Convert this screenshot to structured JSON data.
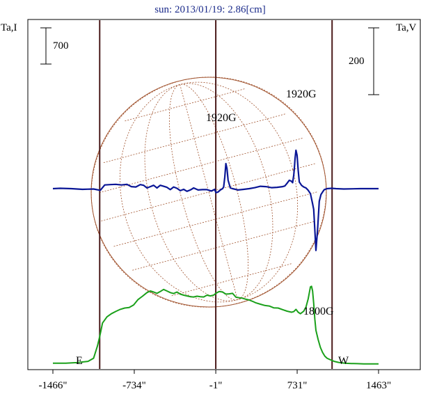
{
  "chart_data": {
    "type": "line",
    "title": "sun: 2013/01/19: 2.86[cm]",
    "left_axis_label": "Ta,I",
    "right_axis_label": "Ta,V",
    "x_ticks": [
      -1466,
      -734,
      -1,
      731,
      1463
    ],
    "x_tick_labels": [
      "-1466\"",
      "-734\"",
      "-1\"",
      "731\"",
      "1463\""
    ],
    "xlim": [
      -1466,
      1463
    ],
    "vertical_lines_x": [
      -1045,
      -1,
      1045
    ],
    "limb_labels": {
      "east": "E",
      "west": "W"
    },
    "scale_bars": [
      {
        "label": "700",
        "side": "left",
        "applies_to": "Ta,I"
      },
      {
        "label": "200",
        "side": "right",
        "applies_to": "Ta,V"
      }
    ],
    "intensity_scale": {
      "units_per_bar": 700
    },
    "polarization_scale": {
      "units_per_bar": 200
    },
    "series": [
      {
        "name": "Ta,I",
        "color": "#1aa01a",
        "x": [
          -1466,
          -1350,
          -1250,
          -1150,
          -1100,
          -1065,
          -1045,
          -1020,
          -980,
          -940,
          -900,
          -860,
          -820,
          -780,
          -740,
          -700,
          -660,
          -620,
          -590,
          -560,
          -530,
          -500,
          -470,
          -440,
          -410,
          -380,
          -350,
          -320,
          -290,
          -260,
          -230,
          -200,
          -170,
          -140,
          -110,
          -80,
          -50,
          -20,
          0,
          30,
          60,
          90,
          120,
          150,
          180,
          210,
          240,
          270,
          300,
          330,
          360,
          400,
          440,
          480,
          520,
          560,
          600,
          640,
          680,
          700,
          720,
          740,
          760,
          790,
          810,
          830,
          850,
          860,
          870,
          880,
          890,
          900,
          920,
          940,
          960,
          980,
          1000,
          1020,
          1045,
          1070,
          1100,
          1130,
          1170,
          1220,
          1270,
          1330,
          1400,
          1463
        ],
        "values": [
          45,
          45,
          55,
          80,
          140,
          380,
          560,
          820,
          940,
          1000,
          1045,
          1085,
          1110,
          1120,
          1170,
          1275,
          1340,
          1410,
          1440,
          1420,
          1395,
          1430,
          1470,
          1440,
          1410,
          1390,
          1420,
          1380,
          1360,
          1345,
          1330,
          1325,
          1340,
          1330,
          1325,
          1360,
          1345,
          1360,
          1395,
          1430,
          1420,
          1380,
          1385,
          1395,
          1320,
          1310,
          1300,
          1280,
          1265,
          1240,
          1210,
          1185,
          1160,
          1150,
          1115,
          1110,
          1080,
          1050,
          1030,
          1040,
          1085,
          1030,
          1000,
          1050,
          1130,
          1290,
          1520,
          1530,
          1440,
          1200,
          900,
          680,
          500,
          350,
          250,
          180,
          140,
          120,
          95,
          75,
          60,
          50,
          42,
          38,
          35,
          30,
          30,
          30
        ]
      },
      {
        "name": "Ta,V",
        "color": "#0a1696",
        "x": [
          -1466,
          -1400,
          -1300,
          -1200,
          -1100,
          -1040,
          -1000,
          -950,
          -900,
          -850,
          -800,
          -760,
          -720,
          -680,
          -650,
          -620,
          -590,
          -560,
          -530,
          -500,
          -470,
          -440,
          -410,
          -380,
          -350,
          -320,
          -290,
          -260,
          -230,
          -200,
          -160,
          -120,
          -80,
          -40,
          -10,
          0,
          20,
          40,
          60,
          70,
          80,
          90,
          100,
          110,
          130,
          150,
          200,
          250,
          300,
          350,
          400,
          450,
          500,
          550,
          600,
          620,
          640,
          660,
          680,
          690,
          700,
          705,
          712,
          720,
          730,
          740,
          750,
          770,
          790,
          810,
          830,
          850,
          870,
          880,
          890,
          900,
          915,
          930,
          945,
          960,
          975,
          1000,
          1040,
          1080,
          1150,
          1300,
          1463
        ],
        "values": [
          0,
          1,
          0,
          -2,
          -1,
          -5,
          11,
          12,
          13,
          11,
          13,
          6,
          5,
          12,
          10,
          2,
          6,
          10,
          2,
          10,
          7,
          4,
          -3,
          5,
          1,
          -6,
          -2,
          -8,
          -4,
          2,
          -4,
          -3,
          -3,
          -7,
          -2,
          -12,
          -10,
          -4,
          0,
          5,
          34,
          75,
          60,
          25,
          2,
          0,
          -4,
          -2,
          0,
          3,
          7,
          6,
          3,
          4,
          6,
          8,
          16,
          25,
          22,
          18,
          40,
          58,
          90,
          115,
          100,
          55,
          20,
          10,
          5,
          2,
          -5,
          -15,
          -45,
          -62,
          -122,
          -185,
          -122,
          -38,
          -18,
          -10,
          -3,
          0,
          1,
          0,
          -1,
          0,
          0
        ]
      }
    ],
    "annotations": [
      {
        "text": "1920G",
        "x": 34,
        "curve": "Ta,V"
      },
      {
        "text": "1920G",
        "x": 725,
        "curve": "Ta,I"
      },
      {
        "text": "1800G",
        "x": 880,
        "curve": "Ta,V"
      }
    ],
    "overlay": {
      "type": "solar-disk-grid",
      "color": "#a0522d",
      "center_x": 0,
      "radius": 978
    }
  }
}
